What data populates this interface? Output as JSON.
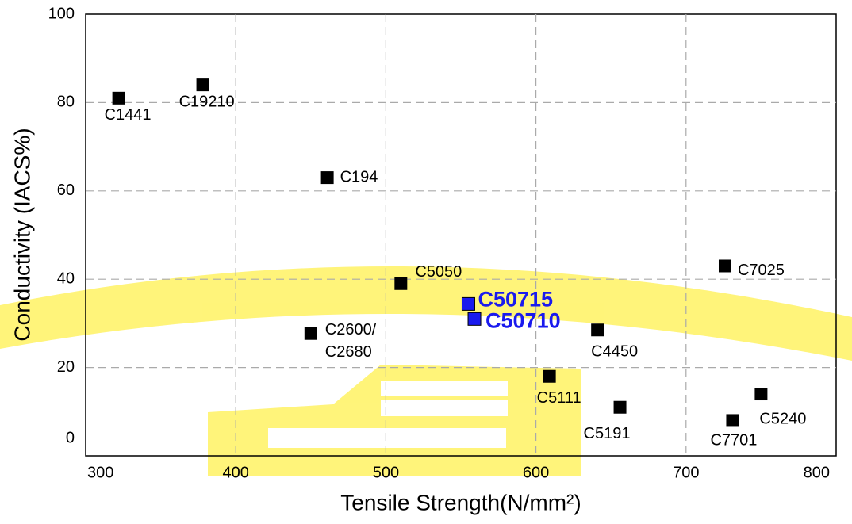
{
  "chart_data": {
    "type": "scatter",
    "x_label": "Tensile Strength(N/mm²)",
    "y_label": "Conductivity (IACS%)",
    "x": [
      322,
      378,
      461,
      510,
      555,
      559,
      450,
      641,
      609,
      656,
      726,
      731,
      750
    ],
    "values": [
      81,
      84,
      63,
      39,
      34.4,
      31,
      27.7,
      28.5,
      18,
      11,
      43,
      8,
      14
    ],
    "labels": [
      [
        "C1441"
      ],
      [
        "C19210"
      ],
      [
        "C194"
      ],
      [
        "C5050"
      ],
      [
        "C50715"
      ],
      [
        "C50710"
      ],
      [
        "C2600/",
        "C2680"
      ],
      [
        "C4450"
      ],
      [
        "C5111"
      ],
      [
        "C5191"
      ],
      [
        "C7025"
      ],
      [
        "C7701"
      ],
      [
        "C5240"
      ]
    ],
    "colors": [
      "#000000",
      "#000000",
      "#000000",
      "#000000",
      "#1a1aee",
      "#1a1aee",
      "#000000",
      "#000000",
      "#000000",
      "#000000",
      "#000000",
      "#000000",
      "#000000"
    ],
    "xlim": [
      300,
      800
    ],
    "ylim": [
      0,
      100
    ],
    "xticks": [
      300,
      400,
      500,
      600,
      700,
      800
    ],
    "yticks": [
      0,
      20,
      40,
      60,
      80,
      100
    ],
    "grid": true
  }
}
